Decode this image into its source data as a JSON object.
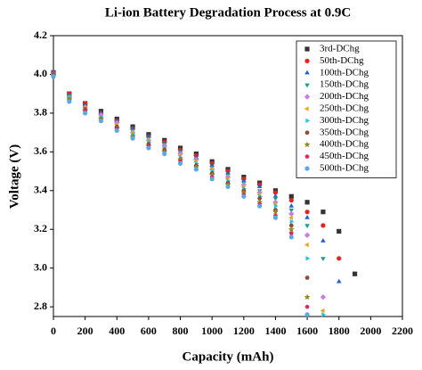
{
  "chart_data": {
    "type": "scatter",
    "title": "Li-ion Battery Degradation Process at 0.9C",
    "x_label": "Capacity (mAh)",
    "y_label": "Voltage (V)",
    "x": [
      0,
      100,
      200,
      300,
      400,
      500,
      600,
      700,
      800,
      900,
      1000,
      1100,
      1200,
      1300,
      1400,
      1500,
      1600,
      1700,
      1800,
      1900
    ],
    "xlim": [
      0,
      2200
    ],
    "xticks": [
      0,
      200,
      400,
      600,
      800,
      1000,
      1200,
      1400,
      1600,
      1800,
      2000,
      2200
    ],
    "ylim": [
      2.75,
      4.2
    ],
    "yticks": [
      {
        "value": 2.8,
        "label": "2.8"
      },
      {
        "value": 3.0,
        "label": "3.0"
      },
      {
        "value": 3.2,
        "label": "3.2"
      },
      {
        "value": 3.4,
        "label": "3.4"
      },
      {
        "value": 3.6,
        "label": "3.6"
      },
      {
        "value": 3.8,
        "label": "3.8"
      },
      {
        "value": 4.0,
        "label": "4.0"
      },
      {
        "value": 4.2,
        "label": "4.2"
      }
    ],
    "legend": "top-right",
    "series": [
      {
        "name": "3rd-DChg",
        "color": "#333333",
        "marker": "square",
        "values": [
          4.01,
          3.9,
          3.85,
          3.81,
          3.77,
          3.73,
          3.69,
          3.66,
          3.62,
          3.59,
          3.55,
          3.51,
          3.47,
          3.44,
          3.4,
          3.37,
          3.34,
          3.29,
          3.19,
          2.97
        ]
      },
      {
        "name": "50th-DChg",
        "color": "#e8231f",
        "marker": "circle",
        "values": [
          4.01,
          3.9,
          3.85,
          3.8,
          3.76,
          3.72,
          3.68,
          3.65,
          3.61,
          3.58,
          3.54,
          3.5,
          3.46,
          3.43,
          3.39,
          3.35,
          3.29,
          3.22,
          3.05,
          null
        ]
      },
      {
        "name": "100th-DChg",
        "color": "#1f5fd6",
        "marker": "triangle-up",
        "values": [
          4.01,
          3.89,
          3.84,
          3.8,
          3.76,
          3.72,
          3.68,
          3.64,
          3.6,
          3.57,
          3.53,
          3.49,
          3.45,
          3.42,
          3.37,
          3.32,
          3.26,
          3.14,
          2.93,
          null
        ]
      },
      {
        "name": "150th-DChg",
        "color": "#14a08c",
        "marker": "triangle-down",
        "values": [
          4.0,
          3.89,
          3.83,
          3.79,
          3.75,
          3.71,
          3.67,
          3.64,
          3.6,
          3.56,
          3.52,
          3.48,
          3.44,
          3.4,
          3.36,
          3.3,
          3.22,
          3.05,
          null,
          null
        ]
      },
      {
        "name": "200th-DChg",
        "color": "#c77fe0",
        "marker": "diamond",
        "values": [
          4.0,
          3.88,
          3.83,
          3.79,
          3.75,
          3.7,
          3.66,
          3.63,
          3.59,
          3.56,
          3.51,
          3.47,
          3.43,
          3.39,
          3.34,
          3.28,
          3.17,
          2.85,
          null,
          null
        ]
      },
      {
        "name": "250th-DChg",
        "color": "#e6a817",
        "marker": "triangle-left",
        "values": [
          4.0,
          3.88,
          3.83,
          3.78,
          3.74,
          3.7,
          3.66,
          3.62,
          3.58,
          3.55,
          3.51,
          3.46,
          3.42,
          3.38,
          3.33,
          3.26,
          3.12,
          2.78,
          null,
          null
        ]
      },
      {
        "name": "300th-DChg",
        "color": "#22c3e8",
        "marker": "triangle-right",
        "values": [
          4.0,
          3.88,
          3.82,
          3.78,
          3.73,
          3.69,
          3.65,
          3.62,
          3.57,
          3.54,
          3.5,
          3.45,
          3.41,
          3.37,
          3.32,
          3.24,
          3.05,
          2.76,
          null,
          null
        ]
      },
      {
        "name": "350th-DChg",
        "color": "#8b4c39",
        "marker": "hexagon",
        "values": [
          4.0,
          3.87,
          3.82,
          3.77,
          3.73,
          3.68,
          3.64,
          3.61,
          3.56,
          3.53,
          3.49,
          3.44,
          3.4,
          3.36,
          3.3,
          3.22,
          2.95,
          null,
          null,
          null
        ]
      },
      {
        "name": "400th-DChg",
        "color": "#8c8c1e",
        "marker": "star",
        "values": [
          3.99,
          3.87,
          3.81,
          3.77,
          3.72,
          3.68,
          3.63,
          3.6,
          3.56,
          3.52,
          3.48,
          3.43,
          3.39,
          3.34,
          3.29,
          3.2,
          2.85,
          null,
          null,
          null
        ]
      },
      {
        "name": "450th-DChg",
        "color": "#e0245e",
        "marker": "pentagon",
        "values": [
          3.99,
          3.86,
          3.81,
          3.76,
          3.72,
          3.67,
          3.63,
          3.59,
          3.55,
          3.51,
          3.47,
          3.42,
          3.38,
          3.33,
          3.27,
          3.18,
          2.8,
          null,
          null,
          null
        ]
      },
      {
        "name": "500th-DChg",
        "color": "#5aa9e6",
        "marker": "circle",
        "values": [
          3.99,
          3.86,
          3.8,
          3.76,
          3.71,
          3.67,
          3.62,
          3.59,
          3.54,
          3.51,
          3.46,
          3.42,
          3.37,
          3.32,
          3.26,
          3.16,
          2.76,
          null,
          null,
          null
        ]
      }
    ]
  }
}
